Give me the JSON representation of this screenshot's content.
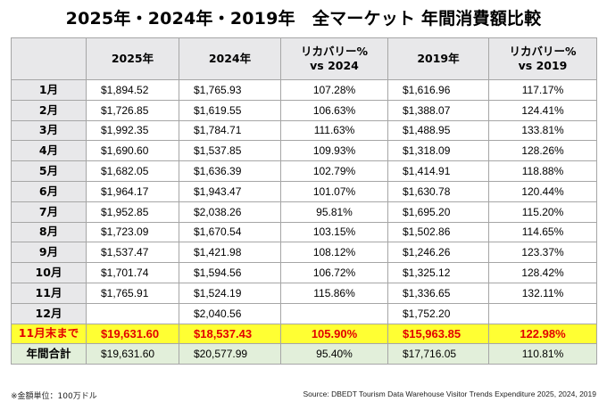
{
  "title": "2025年・2024年・2019年　全マーケット 年間消費額比較",
  "headers": {
    "blank": "",
    "c2025": "2025年",
    "c2024": "2024年",
    "rec2024_line1": "リカバリー%",
    "rec2024_line2": "vs 2024",
    "c2019": "2019年",
    "rec2019_line1": "リカバリー%",
    "rec2019_line2": "vs 2019"
  },
  "rows": [
    {
      "month": "1月",
      "y2025": "$1,894.52",
      "y2024": "$1,765.93",
      "rec2024": "107.28%",
      "y2019": "$1,616.96",
      "rec2019": "117.17%"
    },
    {
      "month": "2月",
      "y2025": "$1,726.85",
      "y2024": "$1,619.55",
      "rec2024": "106.63%",
      "y2019": "$1,388.07",
      "rec2019": "124.41%"
    },
    {
      "month": "3月",
      "y2025": "$1,992.35",
      "y2024": "$1,784.71",
      "rec2024": "111.63%",
      "y2019": "$1,488.95",
      "rec2019": "133.81%"
    },
    {
      "month": "4月",
      "y2025": "$1,690.60",
      "y2024": "$1,537.85",
      "rec2024": "109.93%",
      "y2019": "$1,318.09",
      "rec2019": "128.26%"
    },
    {
      "month": "5月",
      "y2025": "$1,682.05",
      "y2024": "$1,636.39",
      "rec2024": "102.79%",
      "y2019": "$1,414.91",
      "rec2019": "118.88%"
    },
    {
      "month": "6月",
      "y2025": "$1,964.17",
      "y2024": "$1,943.47",
      "rec2024": "101.07%",
      "y2019": "$1,630.78",
      "rec2019": "120.44%"
    },
    {
      "month": "7月",
      "y2025": "$1,952.85",
      "y2024": "$2,038.26",
      "rec2024": "95.81%",
      "y2019": "$1,695.20",
      "rec2019": "115.20%"
    },
    {
      "month": "8月",
      "y2025": "$1,723.09",
      "y2024": "$1,670.54",
      "rec2024": "103.15%",
      "y2019": "$1,502.86",
      "rec2019": "114.65%"
    },
    {
      "month": "9月",
      "y2025": "$1,537.47",
      "y2024": "$1,421.98",
      "rec2024": "108.12%",
      "y2019": "$1,246.26",
      "rec2019": "123.37%"
    },
    {
      "month": "10月",
      "y2025": "$1,701.74",
      "y2024": "$1,594.56",
      "rec2024": "106.72%",
      "y2019": "$1,325.12",
      "rec2019": "128.42%"
    },
    {
      "month": "11月",
      "y2025": "$1,765.91",
      "y2024": "$1,524.19",
      "rec2024": "115.86%",
      "y2019": "$1,336.65",
      "rec2019": "132.11%"
    },
    {
      "month": "12月",
      "y2025": "",
      "y2024": "$2,040.56",
      "rec2024": "",
      "y2019": "$1,752.20",
      "rec2019": ""
    }
  ],
  "ytd": {
    "label": "11月末まで",
    "y2025": "$19,631.60",
    "y2024": "$18,537.43",
    "rec2024": "105.90%",
    "y2019": "$15,963.85",
    "rec2019": "122.98%"
  },
  "annual": {
    "label": "年間合計",
    "y2025": "$19,631.60",
    "y2024": "$20,577.99",
    "rec2024": "95.40%",
    "y2019": "$17,716.05",
    "rec2019": "110.81%"
  },
  "note": "※金額単位：100万ドル",
  "source": "Source: DBEDT Tourism Data Warehouse Visitor Trends Expenditure 2025, 2024, 2019",
  "colors": {
    "ytd_bg": "#ffff33",
    "ytd_text": "#e30000",
    "annual_bg": "#e2efda",
    "header_bg": "#e8e8ea"
  }
}
